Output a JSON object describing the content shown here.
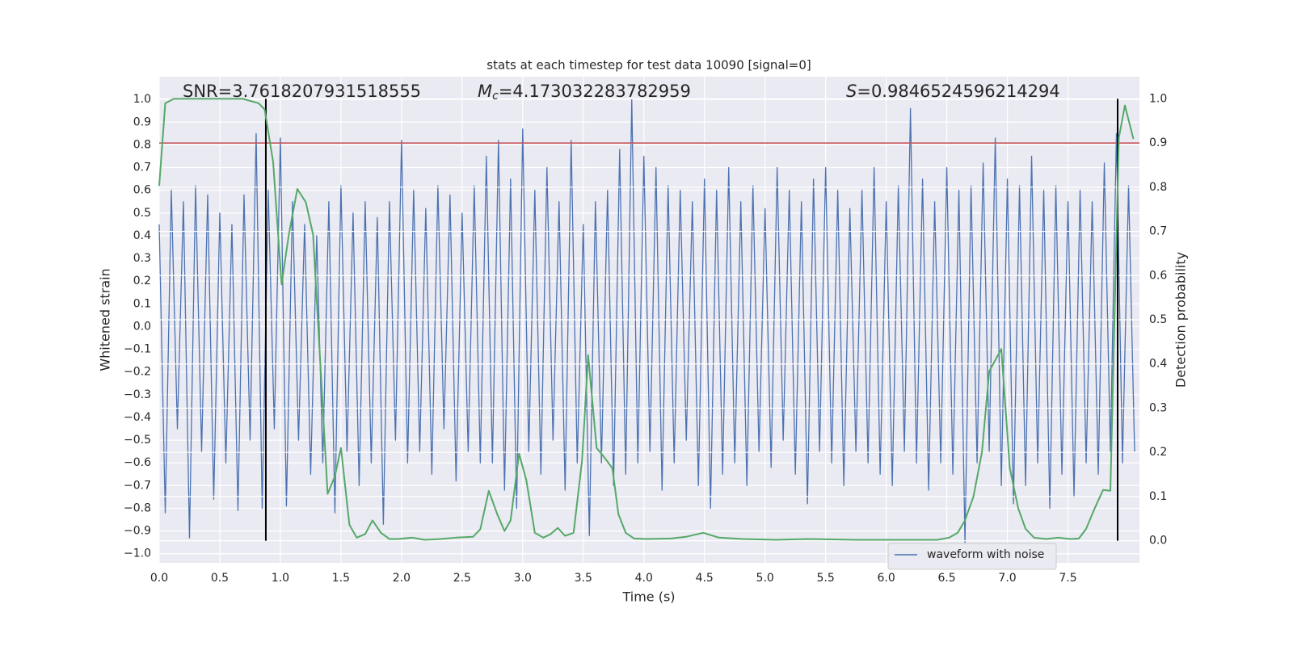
{
  "chart_data": {
    "type": "line",
    "title": "stats at each timestep for test data 10090 [signal=0]",
    "xlabel": "Time (s)",
    "ylabel": "Whitened strain",
    "y2label": "Detection probability",
    "annotations": [
      {
        "text": "SNR=3.7618207931518555"
      },
      {
        "symbol": "M",
        "subscript": "c",
        "text": "=4.173032283782959"
      },
      {
        "symbol": "S",
        "text": "=0.9846524596214294"
      }
    ],
    "xlim": [
      0,
      8.09
    ],
    "ylim": [
      -1.04,
      1.1
    ],
    "y2lim": [
      -0.05,
      1.05
    ],
    "xticks": [
      {
        "value": 0,
        "label": "0.0"
      },
      0.5,
      {
        "value": 1,
        "label": "1.0"
      },
      1.5,
      {
        "value": 2,
        "label": "2.0"
      },
      2.5,
      {
        "value": 3,
        "label": "3.0"
      },
      3.5,
      {
        "value": 4,
        "label": "4.0"
      },
      4.5,
      {
        "value": 5,
        "label": "5.0"
      },
      5.5,
      {
        "value": 6,
        "label": "6.0"
      },
      6.5,
      {
        "value": 7,
        "label": "7.0"
      },
      7.5
    ],
    "yticks": [
      {
        "value": -1,
        "label": "−1.0"
      },
      {
        "value": -0.9,
        "label": "−0.9"
      },
      {
        "value": -0.8,
        "label": "−0.8"
      },
      {
        "value": -0.7,
        "label": "−0.7"
      },
      {
        "value": -0.6,
        "label": "−0.6"
      },
      {
        "value": -0.5,
        "label": "−0.5"
      },
      {
        "value": -0.4,
        "label": "−0.4"
      },
      {
        "value": -0.3,
        "label": "−0.3"
      },
      {
        "value": -0.2,
        "label": "−0.2"
      },
      {
        "value": -0.1,
        "label": "−0.1"
      },
      {
        "value": 0,
        "label": "0.0"
      },
      0.1,
      0.2,
      0.3,
      0.4,
      0.5,
      0.6,
      0.7,
      0.8,
      0.9,
      {
        "value": 1,
        "label": "1.0"
      }
    ],
    "y2ticks": [
      {
        "value": 0,
        "label": "0.0"
      },
      0.1,
      0.2,
      0.3,
      0.4,
      0.5,
      0.6,
      0.7,
      0.8,
      0.9,
      {
        "value": 1,
        "label": "1.0"
      }
    ],
    "grid": true,
    "legend": "lower right",
    "series": [
      {
        "name": "waveform with noise",
        "color": "#4c72b0",
        "x": [
          0,
          0.05,
          0.1,
          0.15,
          0.2,
          0.25,
          0.3,
          0.35,
          0.4,
          0.45,
          0.5,
          0.55,
          0.6,
          0.65,
          0.7,
          0.75,
          0.8,
          0.85,
          0.9,
          0.95,
          1,
          1.05,
          1.1,
          1.15,
          1.2,
          1.25,
          1.3,
          1.35,
          1.4,
          1.45,
          1.5,
          1.55,
          1.6,
          1.65,
          1.7,
          1.75,
          1.8,
          1.85,
          1.9,
          1.95,
          2,
          2.05,
          2.1,
          2.15,
          2.2,
          2.25,
          2.3,
          2.35,
          2.4,
          2.45,
          2.5,
          2.55,
          2.6,
          2.65,
          2.7,
          2.75,
          2.8,
          2.85,
          2.9,
          2.95,
          3,
          3.05,
          3.1,
          3.15,
          3.2,
          3.25,
          3.3,
          3.35,
          3.4,
          3.45,
          3.5,
          3.55,
          3.6,
          3.65,
          3.7,
          3.75,
          3.8,
          3.85,
          3.9,
          3.95,
          4,
          4.05,
          4.1,
          4.15,
          4.2,
          4.25,
          4.3,
          4.35,
          4.4,
          4.45,
          4.5,
          4.55,
          4.6,
          4.65,
          4.7,
          4.75,
          4.8,
          4.85,
          4.9,
          4.95,
          5,
          5.05,
          5.1,
          5.15,
          5.2,
          5.25,
          5.3,
          5.35,
          5.4,
          5.45,
          5.5,
          5.55,
          5.6,
          5.65,
          5.7,
          5.75,
          5.8,
          5.85,
          5.9,
          5.95,
          6,
          6.05,
          6.1,
          6.15,
          6.2,
          6.25,
          6.3,
          6.35,
          6.4,
          6.45,
          6.5,
          6.55,
          6.6,
          6.65,
          6.7,
          6.75,
          6.8,
          6.85,
          6.9,
          6.95,
          7,
          7.05,
          7.1,
          7.15,
          7.2,
          7.25,
          7.3,
          7.35,
          7.4,
          7.45,
          7.5,
          7.55,
          7.6,
          7.65,
          7.7,
          7.75,
          7.8,
          7.85,
          7.9,
          7.95,
          8,
          8.05
        ],
        "values": [
          0.45,
          -0.82,
          0.6,
          -0.45,
          0.55,
          -0.93,
          0.62,
          -0.55,
          0.58,
          -0.76,
          0.5,
          -0.6,
          0.45,
          -0.81,
          0.58,
          -0.5,
          0.85,
          -0.8,
          0.6,
          -0.45,
          0.83,
          -0.79,
          0.55,
          -0.5,
          0.45,
          -0.65,
          0.4,
          -0.6,
          0.55,
          -0.82,
          0.62,
          -0.55,
          0.5,
          -0.7,
          0.55,
          -0.6,
          0.48,
          -0.87,
          0.55,
          -0.5,
          0.82,
          -0.6,
          0.6,
          -0.55,
          0.52,
          -0.65,
          0.62,
          -0.45,
          0.58,
          -0.68,
          0.5,
          -0.55,
          0.62,
          -0.6,
          0.75,
          -0.6,
          0.82,
          -0.72,
          0.65,
          -0.8,
          0.87,
          -0.55,
          0.6,
          -0.65,
          0.7,
          -0.5,
          0.55,
          -0.72,
          0.82,
          -0.6,
          0.45,
          -0.92,
          0.55,
          -0.6,
          0.6,
          -0.7,
          0.78,
          -0.65,
          1.0,
          -0.6,
          0.75,
          -0.55,
          0.7,
          -0.72,
          0.62,
          -0.6,
          0.6,
          -0.5,
          0.55,
          -0.7,
          0.65,
          -0.8,
          0.6,
          -0.65,
          0.7,
          -0.6,
          0.55,
          -0.7,
          0.62,
          -0.55,
          0.52,
          -0.62,
          0.7,
          -0.5,
          0.6,
          -0.65,
          0.55,
          -0.78,
          0.65,
          -0.55,
          0.7,
          -0.6,
          0.6,
          -0.7,
          0.52,
          -0.55,
          0.6,
          -0.6,
          0.7,
          -0.65,
          0.55,
          -0.7,
          0.62,
          -0.55,
          0.96,
          -0.6,
          0.65,
          -0.72,
          0.55,
          -0.6,
          0.7,
          -0.65,
          0.6,
          -0.95,
          0.62,
          -0.6,
          0.72,
          -0.55,
          0.83,
          -0.7,
          0.65,
          -0.78,
          0.62,
          -0.7,
          0.75,
          -0.6,
          0.6,
          -0.8,
          0.62,
          -0.65,
          0.55,
          -0.75,
          0.6,
          -0.6,
          0.55,
          -0.65,
          0.72,
          -0.55,
          0.85,
          -0.6,
          0.62,
          -0.55
        ]
      },
      {
        "color": "#55a868",
        "axis": "y2",
        "x": [
          0,
          0.05,
          0.12,
          0.69,
          0.82,
          0.87,
          0.94,
          1.01,
          1.07,
          1.14,
          1.21,
          1.27,
          1.39,
          1.45,
          1.5,
          1.57,
          1.63,
          1.7,
          1.76,
          1.83,
          1.9,
          1.97,
          2.09,
          2.19,
          2.32,
          2.45,
          2.59,
          2.65,
          2.72,
          2.79,
          2.85,
          2.9,
          2.97,
          3.03,
          3.1,
          3.17,
          3.23,
          3.29,
          3.35,
          3.42,
          3.49,
          3.54,
          3.61,
          3.67,
          3.74,
          3.79,
          3.85,
          3.92,
          4.02,
          4.22,
          4.35,
          4.49,
          4.62,
          4.82,
          5.09,
          5.35,
          5.75,
          6.02,
          6.42,
          6.52,
          6.59,
          6.65,
          6.72,
          6.79,
          6.85,
          6.95,
          7.02,
          7.09,
          7.15,
          7.22,
          7.32,
          7.42,
          7.52,
          7.59,
          7.65,
          7.72,
          7.79,
          7.85,
          7.92,
          7.97,
          8.04
        ],
        "values": [
          0.803,
          0.99,
          1.0,
          1.0,
          0.99,
          0.976,
          0.858,
          0.58,
          0.693,
          0.796,
          0.766,
          0.693,
          0.106,
          0.146,
          0.21,
          0.036,
          0.007,
          0.015,
          0.046,
          0.018,
          0.004,
          0.004,
          0.007,
          0.002,
          0.004,
          0.007,
          0.009,
          0.026,
          0.113,
          0.06,
          0.022,
          0.046,
          0.197,
          0.137,
          0.018,
          0.007,
          0.015,
          0.029,
          0.011,
          0.018,
          0.182,
          0.42,
          0.21,
          0.19,
          0.164,
          0.06,
          0.018,
          0.005,
          0.004,
          0.005,
          0.009,
          0.018,
          0.007,
          0.004,
          0.002,
          0.004,
          0.002,
          0.002,
          0.002,
          0.007,
          0.018,
          0.046,
          0.1,
          0.2,
          0.383,
          0.434,
          0.164,
          0.073,
          0.027,
          0.007,
          0.004,
          0.007,
          0.004,
          0.005,
          0.027,
          0.073,
          0.115,
          0.113,
          0.912,
          0.985,
          0.909
        ]
      }
    ],
    "hlines": [
      {
        "value": 0.9,
        "axis": "y2",
        "color": "#c44e52"
      }
    ],
    "vlines": [
      {
        "x": 0.88,
        "ymin": 0,
        "ymax": 1,
        "axis": "y2",
        "color": "#000000"
      },
      {
        "x": 7.91,
        "ymin": 0,
        "ymax": 1,
        "axis": "y2",
        "color": "#000000"
      }
    ]
  }
}
